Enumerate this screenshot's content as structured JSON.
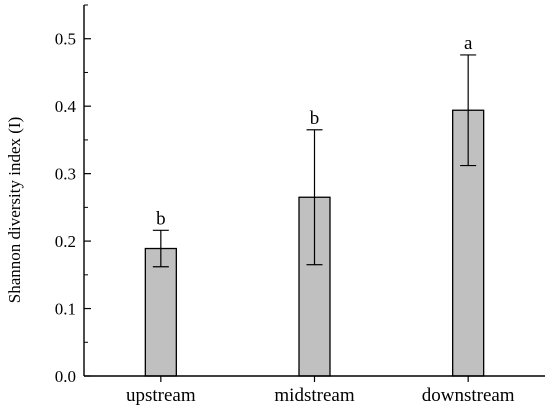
{
  "chart_data": {
    "type": "bar",
    "title": "",
    "xlabel": "",
    "ylabel": "Shannon diversity index (I)",
    "categories": [
      "upstream",
      "midstream",
      "downstream"
    ],
    "values": [
      0.189,
      0.265,
      0.394
    ],
    "errors": [
      0.027,
      0.1,
      0.082
    ],
    "significance_letters": [
      "b",
      "b",
      "a"
    ],
    "ylim": [
      0.0,
      0.55
    ],
    "yticks": [
      "0.0",
      "0.1",
      "0.2",
      "0.3",
      "0.4",
      "0.5"
    ],
    "grid": false,
    "legend": "none",
    "bar_color": "#c0c0c0",
    "edge_color": "#000000"
  }
}
